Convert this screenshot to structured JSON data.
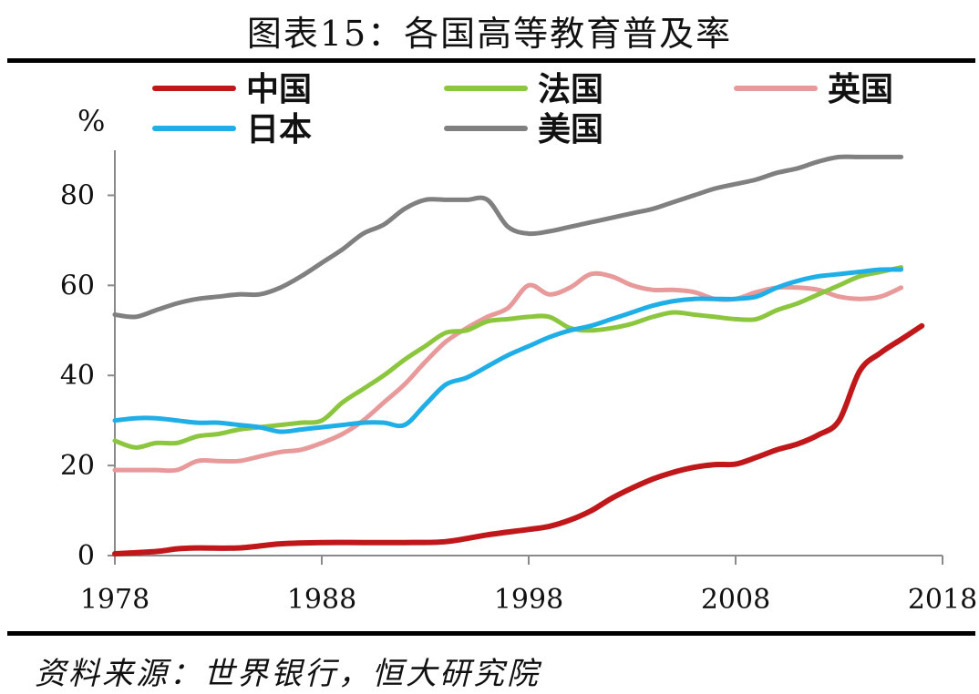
{
  "chart_data": {
    "type": "line",
    "title": "图表15：各国高等教育普及率",
    "ylabel": "%",
    "xlabel": "",
    "ylim": [
      0,
      90
    ],
    "xlim": [
      1978,
      2018
    ],
    "yticks": [
      0,
      20,
      40,
      60,
      80
    ],
    "xticks": [
      1978,
      1988,
      1998,
      2008,
      2018
    ],
    "legend_position": "top",
    "source": "资料来源：世界银行，恒大研究院",
    "series": [
      {
        "name": "中国",
        "color": "#c0171b",
        "x": [
          1978,
          1980,
          1981,
          1982,
          1984,
          1986,
          1988,
          1990,
          1992,
          1994,
          1996,
          1998,
          1999,
          2000,
          2001,
          2002,
          2003,
          2004,
          2005,
          2006,
          2007,
          2008,
          2009,
          2010,
          2011,
          2012,
          2013,
          2014,
          2015,
          2016,
          2017,
          2018
        ],
        "y": [
          0.4,
          0.9,
          1.5,
          1.7,
          1.7,
          2.6,
          2.9,
          2.9,
          2.9,
          3.1,
          4.6,
          5.8,
          6.5,
          7.9,
          9.9,
          12.7,
          15.0,
          17.0,
          18.5,
          19.6,
          20.2,
          20.3,
          21.8,
          23.5,
          24.8,
          26.8,
          30.0,
          41.0,
          45.0,
          48.0,
          51.0,
          51.0
        ],
        "show_last": 2017
      },
      {
        "name": "法国",
        "color": "#8cc63e",
        "x": [
          1978,
          1979,
          1980,
          1981,
          1982,
          1983,
          1984,
          1985,
          1986,
          1987,
          1988,
          1989,
          1990,
          1991,
          1992,
          1993,
          1994,
          1995,
          1996,
          1997,
          1998,
          1999,
          2000,
          2001,
          2002,
          2003,
          2004,
          2005,
          2006,
          2007,
          2008,
          2009,
          2010,
          2011,
          2012,
          2013,
          2014,
          2015,
          2016
        ],
        "y": [
          25.5,
          24.0,
          25.0,
          25.0,
          26.5,
          27.0,
          28.0,
          28.5,
          29.0,
          29.5,
          30.0,
          34.0,
          37.0,
          40.0,
          43.5,
          46.5,
          49.5,
          50.0,
          52.0,
          52.5,
          53.0,
          53.0,
          50.5,
          50.0,
          50.5,
          51.5,
          53.0,
          54.0,
          53.5,
          53.0,
          52.5,
          52.5,
          54.5,
          56.0,
          58.0,
          60.0,
          62.0,
          63.0,
          64.0
        ]
      },
      {
        "name": "英国",
        "color": "#e8999a",
        "x": [
          1978,
          1979,
          1980,
          1981,
          1982,
          1983,
          1984,
          1985,
          1986,
          1987,
          1988,
          1989,
          1990,
          1991,
          1992,
          1993,
          1994,
          1995,
          1996,
          1997,
          1998,
          1999,
          2000,
          2001,
          2002,
          2003,
          2004,
          2005,
          2006,
          2007,
          2008,
          2009,
          2010,
          2011,
          2012,
          2013,
          2014,
          2015,
          2016
        ],
        "y": [
          19.0,
          19.0,
          19.0,
          19.0,
          21.0,
          21.0,
          21.0,
          22.0,
          23.0,
          23.5,
          25.0,
          27.0,
          30.0,
          34.0,
          38.0,
          43.0,
          47.5,
          50.5,
          53.0,
          55.0,
          60.0,
          58.0,
          59.5,
          62.5,
          62.0,
          60.0,
          59.0,
          59.0,
          58.5,
          57.0,
          57.0,
          58.5,
          59.5,
          59.5,
          59.0,
          57.5,
          57.0,
          57.5,
          59.5
        ]
      },
      {
        "name": "日本",
        "color": "#20aee6",
        "x": [
          1978,
          1979,
          1980,
          1981,
          1982,
          1983,
          1984,
          1985,
          1986,
          1987,
          1988,
          1989,
          1990,
          1991,
          1992,
          1993,
          1994,
          1995,
          1996,
          1997,
          1998,
          1999,
          2000,
          2001,
          2002,
          2003,
          2004,
          2005,
          2006,
          2007,
          2008,
          2009,
          2010,
          2011,
          2012,
          2013,
          2014,
          2015,
          2016
        ],
        "y": [
          30.0,
          30.5,
          30.5,
          30.0,
          29.5,
          29.5,
          29.0,
          28.5,
          27.5,
          28.0,
          28.5,
          29.0,
          29.5,
          29.5,
          29.0,
          33.5,
          38.0,
          39.5,
          42.0,
          44.5,
          46.5,
          48.5,
          50.0,
          51.0,
          52.5,
          54.0,
          55.5,
          56.5,
          57.0,
          57.0,
          57.0,
          57.5,
          59.5,
          61.0,
          62.0,
          62.5,
          63.0,
          63.5,
          63.5
        ]
      },
      {
        "name": "美国",
        "color": "#808080",
        "x": [
          1978,
          1979,
          1980,
          1981,
          1982,
          1983,
          1984,
          1985,
          1986,
          1987,
          1988,
          1989,
          1990,
          1991,
          1992,
          1993,
          1994,
          1995,
          1996,
          1997,
          1998,
          1999,
          2000,
          2001,
          2002,
          2003,
          2004,
          2005,
          2006,
          2007,
          2008,
          2009,
          2010,
          2011,
          2012,
          2013,
          2014,
          2015,
          2016
        ],
        "y": [
          53.5,
          53.0,
          54.5,
          56.0,
          57.0,
          57.5,
          58.0,
          58.0,
          59.5,
          62.0,
          65.0,
          68.0,
          71.5,
          73.5,
          77.0,
          79.0,
          79.0,
          79.0,
          79.0,
          73.0,
          71.5,
          72.0,
          73.0,
          74.0,
          75.0,
          76.0,
          77.0,
          78.5,
          80.0,
          81.5,
          82.5,
          83.5,
          85.0,
          86.0,
          87.5,
          88.5,
          88.5,
          88.5,
          88.5
        ]
      }
    ]
  }
}
